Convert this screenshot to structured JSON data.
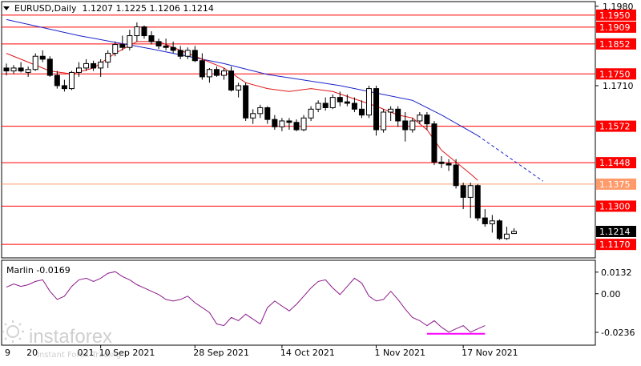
{
  "header": {
    "symbol_line": "EURUSD,Daily  1.1207 1.1225 1.1206 1.1214"
  },
  "indicator": {
    "label": "Marlin -0.0169",
    "ticks": [
      "0.0132",
      "0.00",
      "-0.0236"
    ]
  },
  "watermark": {
    "brand": "instaforex",
    "tagline": "Instant Forex Trading"
  },
  "colors": {
    "background": "#ffffff",
    "candle": "#000000",
    "level_line": "#ff0000",
    "level_label_bg": "#ff0000",
    "level_label_alt_bg": "#ff9a6a",
    "ma_blue": "#1a24c8",
    "ma_red": "#e01818",
    "marlin": "#8b1a8b",
    "marlin_mark": "#ff00ff",
    "price_tag_bg": "#000000"
  },
  "chart_data": {
    "type": "candlestick",
    "symbol": "EURUSD",
    "timeframe": "Daily",
    "last_ohlc": {
      "open": 1.1207,
      "high": 1.1225,
      "low": 1.1206,
      "close": 1.1214
    },
    "price_scale": {
      "ylim": [
        1.1135,
        1.1985
      ],
      "ticks": [
        1.198,
        1.171
      ],
      "tick_labels": [
        "1.1980",
        "1.1710"
      ]
    },
    "x_labels": [
      "10 Sep 2021",
      "28 Sep 2021",
      "14 Oct 2021",
      "1 Nov 2021",
      "17 Nov 2021"
    ],
    "x_label_indices": [
      13,
      26,
      38,
      51,
      63
    ],
    "x_labels_partial": [
      "9",
      "20",
      "021"
    ],
    "x_labels_partial_indices": [
      0,
      3,
      10
    ],
    "levels": [
      {
        "price": 1.195,
        "label": "1.1950",
        "style": "primary"
      },
      {
        "price": 1.1909,
        "label": "1.1909",
        "style": "primary"
      },
      {
        "price": 1.1852,
        "label": "1.1852",
        "style": "primary"
      },
      {
        "price": 1.175,
        "label": "1.1750",
        "style": "primary"
      },
      {
        "price": 1.1572,
        "label": "1.1572",
        "style": "primary"
      },
      {
        "price": 1.1448,
        "label": "1.1448",
        "style": "primary"
      },
      {
        "price": 1.1375,
        "label": "1.1375",
        "style": "secondary"
      },
      {
        "price": 1.13,
        "label": "1.1300",
        "style": "primary"
      },
      {
        "price": 1.117,
        "label": "1.1170",
        "style": "primary"
      }
    ],
    "current_price": {
      "price": 1.1214,
      "label": "1.1214"
    },
    "candles": [
      [
        1.177,
        1.1785,
        1.1745,
        1.176
      ],
      [
        1.176,
        1.178,
        1.175,
        1.177
      ],
      [
        1.177,
        1.179,
        1.1755,
        1.176
      ],
      [
        1.1755,
        1.1775,
        1.174,
        1.1765
      ],
      [
        1.1765,
        1.182,
        1.176,
        1.181
      ],
      [
        1.181,
        1.183,
        1.179,
        1.18
      ],
      [
        1.18,
        1.181,
        1.174,
        1.1745
      ],
      [
        1.1745,
        1.176,
        1.17,
        1.171
      ],
      [
        1.171,
        1.173,
        1.169,
        1.17
      ],
      [
        1.17,
        1.176,
        1.1695,
        1.1755
      ],
      [
        1.1755,
        1.179,
        1.174,
        1.177
      ],
      [
        1.177,
        1.18,
        1.176,
        1.1785
      ],
      [
        1.1785,
        1.1795,
        1.176,
        1.177
      ],
      [
        1.177,
        1.18,
        1.174,
        1.179
      ],
      [
        1.179,
        1.183,
        1.177,
        1.182
      ],
      [
        1.182,
        1.186,
        1.181,
        1.185
      ],
      [
        1.185,
        1.188,
        1.183,
        1.184
      ],
      [
        1.184,
        1.19,
        1.183,
        1.188
      ],
      [
        1.188,
        1.1925,
        1.186,
        1.191
      ],
      [
        1.191,
        1.1915,
        1.187,
        1.188
      ],
      [
        1.188,
        1.1895,
        1.185,
        1.186
      ],
      [
        1.186,
        1.187,
        1.1835,
        1.1845
      ],
      [
        1.1845,
        1.187,
        1.183,
        1.184
      ],
      [
        1.184,
        1.186,
        1.182,
        1.183
      ],
      [
        1.183,
        1.1845,
        1.18,
        1.181
      ],
      [
        1.181,
        1.184,
        1.18,
        1.183
      ],
      [
        1.183,
        1.1845,
        1.179,
        1.1795
      ],
      [
        1.1795,
        1.182,
        1.173,
        1.174
      ],
      [
        1.174,
        1.177,
        1.172,
        1.1765
      ],
      [
        1.1765,
        1.1775,
        1.174,
        1.1745
      ],
      [
        1.1745,
        1.177,
        1.173,
        1.176
      ],
      [
        1.176,
        1.1775,
        1.169,
        1.1695
      ],
      [
        1.1695,
        1.172,
        1.167,
        1.171
      ],
      [
        1.171,
        1.172,
        1.159,
        1.16
      ],
      [
        1.16,
        1.163,
        1.158,
        1.1615
      ],
      [
        1.1615,
        1.1645,
        1.16,
        1.1635
      ],
      [
        1.1635,
        1.164,
        1.158,
        1.1595
      ],
      [
        1.1595,
        1.161,
        1.156,
        1.157
      ],
      [
        1.157,
        1.16,
        1.1555,
        1.159
      ],
      [
        1.159,
        1.16,
        1.156,
        1.1585
      ],
      [
        1.1585,
        1.1595,
        1.1555,
        1.156
      ],
      [
        1.156,
        1.161,
        1.1555,
        1.16
      ],
      [
        1.16,
        1.164,
        1.159,
        1.163
      ],
      [
        1.163,
        1.166,
        1.162,
        1.165
      ],
      [
        1.165,
        1.167,
        1.1625,
        1.1635
      ],
      [
        1.1635,
        1.168,
        1.163,
        1.167
      ],
      [
        1.167,
        1.169,
        1.164,
        1.1655
      ],
      [
        1.1655,
        1.168,
        1.164,
        1.165
      ],
      [
        1.165,
        1.167,
        1.162,
        1.163
      ],
      [
        1.163,
        1.166,
        1.16,
        1.161
      ],
      [
        1.161,
        1.171,
        1.16,
        1.17
      ],
      [
        1.17,
        1.171,
        1.154,
        1.156
      ],
      [
        1.156,
        1.163,
        1.155,
        1.162
      ],
      [
        1.162,
        1.164,
        1.159,
        1.163
      ],
      [
        1.163,
        1.164,
        1.157,
        1.159
      ],
      [
        1.159,
        1.162,
        1.152,
        1.156
      ],
      [
        1.156,
        1.16,
        1.155,
        1.159
      ],
      [
        1.159,
        1.162,
        1.158,
        1.161
      ],
      [
        1.161,
        1.162,
        1.156,
        1.158
      ],
      [
        1.158,
        1.159,
        1.144,
        1.145
      ],
      [
        1.145,
        1.147,
        1.143,
        1.1445
      ],
      [
        1.1445,
        1.146,
        1.142,
        1.144
      ],
      [
        1.144,
        1.146,
        1.136,
        1.137
      ],
      [
        1.137,
        1.138,
        1.129,
        1.133
      ],
      [
        1.133,
        1.138,
        1.126,
        1.137
      ],
      [
        1.137,
        1.1375,
        1.125,
        1.126
      ],
      [
        1.126,
        1.129,
        1.123,
        1.124
      ],
      [
        1.124,
        1.127,
        1.121,
        1.125
      ],
      [
        1.125,
        1.1255,
        1.1185,
        1.119
      ],
      [
        1.119,
        1.123,
        1.1185,
        1.1205
      ],
      [
        1.1207,
        1.1225,
        1.1206,
        1.1214
      ]
    ],
    "ma_blue": [
      [
        0,
        1.1935
      ],
      [
        10,
        1.188
      ],
      [
        20,
        1.1835
      ],
      [
        30,
        1.1785
      ],
      [
        36,
        1.1748
      ],
      [
        46,
        1.171
      ],
      [
        52,
        1.168
      ],
      [
        56,
        1.166
      ],
      [
        60,
        1.161
      ],
      [
        65,
        1.154
      ]
    ],
    "ma_blue_projection": [
      [
        65,
        1.154
      ],
      [
        74,
        1.1385
      ]
    ],
    "ma_red": [
      [
        0,
        1.182
      ],
      [
        3,
        1.179
      ],
      [
        6,
        1.176
      ],
      [
        9,
        1.175
      ],
      [
        12,
        1.177
      ],
      [
        15,
        1.182
      ],
      [
        18,
        1.186
      ],
      [
        21,
        1.186
      ],
      [
        24,
        1.183
      ],
      [
        27,
        1.18
      ],
      [
        30,
        1.177
      ],
      [
        33,
        1.172
      ],
      [
        36,
        1.17
      ],
      [
        39,
        1.169
      ],
      [
        42,
        1.17
      ],
      [
        45,
        1.169
      ],
      [
        48,
        1.1665
      ],
      [
        51,
        1.164
      ],
      [
        54,
        1.161
      ],
      [
        56,
        1.16
      ],
      [
        58,
        1.156
      ],
      [
        60,
        1.149
      ],
      [
        62,
        1.145
      ],
      [
        64,
        1.141
      ],
      [
        65,
        1.1388
      ]
    ],
    "marlin": {
      "ylim": [
        -0.03,
        0.018
      ],
      "values": [
        0.004,
        0.006,
        0.0045,
        0.0055,
        0.0075,
        0.0085,
        0.0015,
        -0.0035,
        -0.0015,
        0.0045,
        0.0085,
        0.0095,
        0.0075,
        0.0095,
        0.0125,
        0.0135,
        0.0105,
        0.0085,
        0.0055,
        0.0035,
        0.0015,
        -0.0005,
        -0.0035,
        -0.0045,
        -0.0035,
        -0.0015,
        -0.0055,
        -0.0085,
        -0.0115,
        -0.0185,
        -0.0195,
        -0.0145,
        -0.0165,
        -0.0125,
        -0.0155,
        -0.0185,
        -0.0085,
        -0.0045,
        -0.0075,
        -0.0105,
        -0.0065,
        -0.0015,
        0.0035,
        0.0075,
        0.0085,
        0.0035,
        -0.0005,
        0.0045,
        0.0095,
        0.0065,
        -0.0015,
        -0.0045,
        -0.0035,
        0.0015,
        -0.0035,
        -0.0095,
        -0.0145,
        -0.0165,
        -0.0195,
        -0.0165,
        -0.0205,
        -0.0235,
        -0.0215,
        -0.0195,
        -0.0235,
        -0.0215,
        -0.0195
      ],
      "x_start_index": 0,
      "marked_segment": [
        58,
        66
      ]
    }
  }
}
